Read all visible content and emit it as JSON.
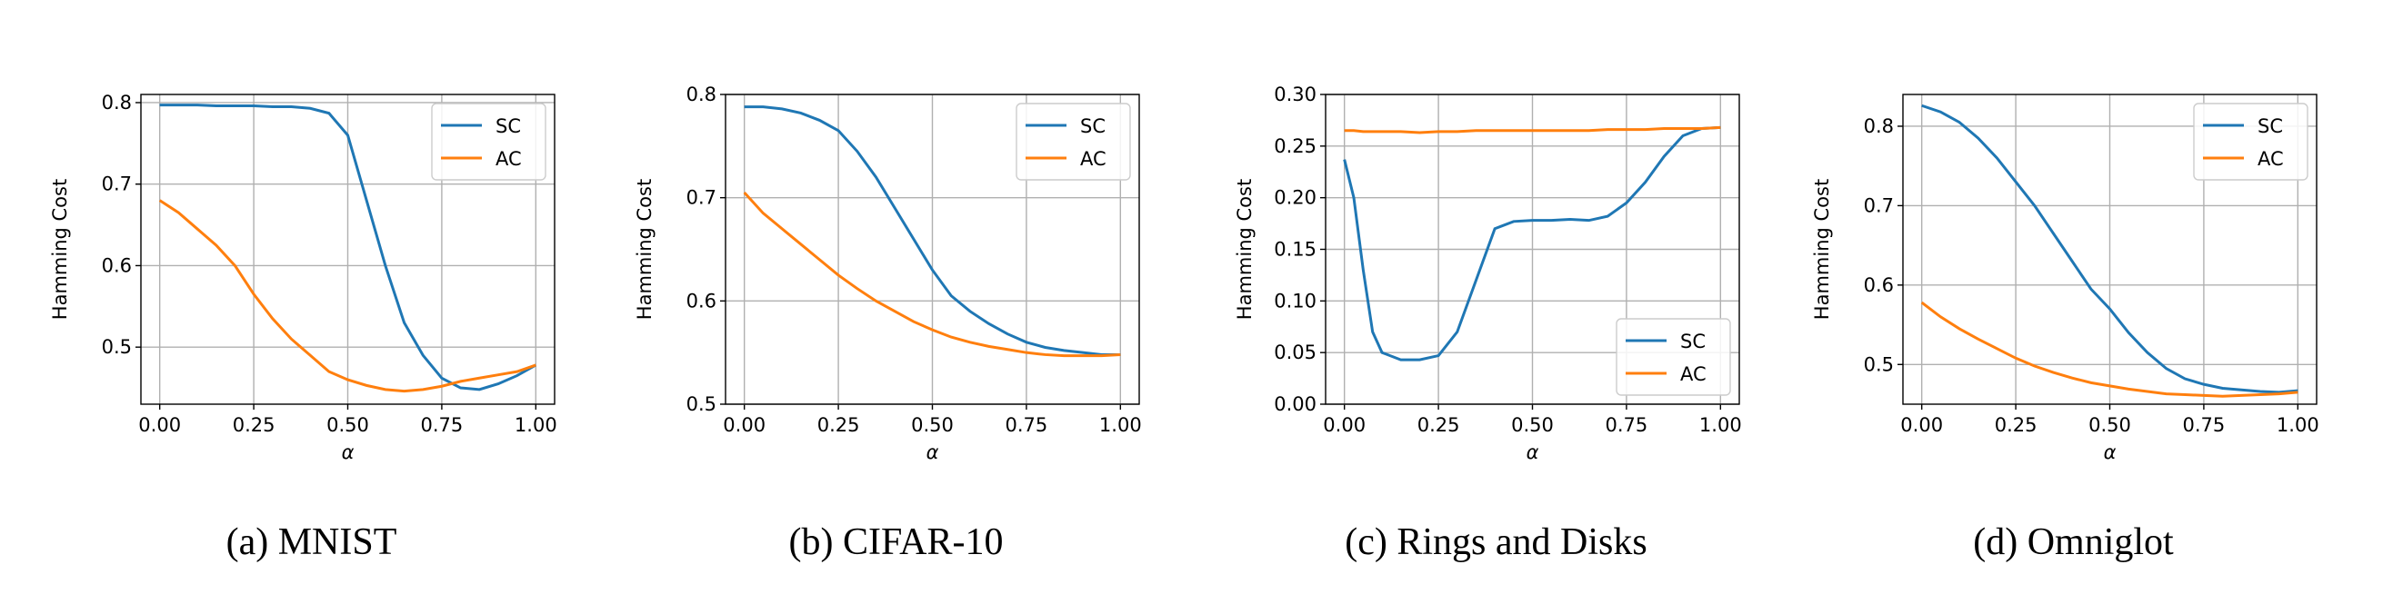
{
  "chart_data": [
    {
      "type": "line",
      "caption": "(a) MNIST",
      "xlabel": "α",
      "ylabel": "Hamming Cost",
      "x": [
        0,
        0.05,
        0.1,
        0.15,
        0.2,
        0.25,
        0.3,
        0.35,
        0.4,
        0.45,
        0.5,
        0.55,
        0.6,
        0.65,
        0.7,
        0.75,
        0.8,
        0.85,
        0.9,
        0.95,
        1.0
      ],
      "series": [
        {
          "name": "SC",
          "color": "#1f77b4",
          "values": [
            0.797,
            0.797,
            0.797,
            0.796,
            0.796,
            0.796,
            0.795,
            0.795,
            0.793,
            0.787,
            0.76,
            0.68,
            0.6,
            0.53,
            0.49,
            0.462,
            0.45,
            0.448,
            0.455,
            0.465,
            0.478
          ]
        },
        {
          "name": "AC",
          "color": "#ff7f0e",
          "values": [
            0.68,
            0.665,
            0.645,
            0.625,
            0.6,
            0.565,
            0.535,
            0.51,
            0.49,
            0.47,
            0.46,
            0.453,
            0.448,
            0.446,
            0.448,
            0.452,
            0.458,
            0.462,
            0.466,
            0.47,
            0.478
          ]
        }
      ],
      "xlim": [
        -0.05,
        1.05
      ],
      "ylim": [
        0.43,
        0.81
      ],
      "xticks": [
        {
          "value": 0,
          "label": "0.00"
        },
        {
          "value": 0.25,
          "label": "0.25"
        },
        {
          "value": 0.5,
          "label": "0.50"
        },
        {
          "value": 0.75,
          "label": "0.75"
        },
        {
          "value": 1,
          "label": "1.00"
        }
      ],
      "yticks": [
        0.5,
        0.6,
        0.7,
        0.8
      ],
      "grid": true,
      "legend": "upper-right"
    },
    {
      "type": "line",
      "caption": "(b) CIFAR-10",
      "xlabel": "α",
      "ylabel": "Hamming Cost",
      "x": [
        0,
        0.05,
        0.1,
        0.15,
        0.2,
        0.25,
        0.3,
        0.35,
        0.4,
        0.45,
        0.5,
        0.55,
        0.6,
        0.65,
        0.7,
        0.75,
        0.8,
        0.85,
        0.9,
        0.95,
        1.0
      ],
      "series": [
        {
          "name": "SC",
          "color": "#1f77b4",
          "values": [
            0.788,
            0.788,
            0.786,
            0.782,
            0.775,
            0.765,
            0.745,
            0.72,
            0.69,
            0.66,
            0.63,
            0.605,
            0.59,
            0.578,
            0.568,
            0.56,
            0.555,
            0.552,
            0.55,
            0.548,
            0.548
          ]
        },
        {
          "name": "AC",
          "color": "#ff7f0e",
          "values": [
            0.705,
            0.685,
            0.67,
            0.655,
            0.64,
            0.625,
            0.612,
            0.6,
            0.59,
            0.58,
            0.572,
            0.565,
            0.56,
            0.556,
            0.553,
            0.55,
            0.548,
            0.547,
            0.547,
            0.547,
            0.548
          ]
        }
      ],
      "xlim": [
        -0.05,
        1.05
      ],
      "ylim": [
        0.5,
        0.8
      ],
      "xticks": [
        {
          "value": 0,
          "label": "0.00"
        },
        {
          "value": 0.25,
          "label": "0.25"
        },
        {
          "value": 0.5,
          "label": "0.50"
        },
        {
          "value": 0.75,
          "label": "0.75"
        },
        {
          "value": 1,
          "label": "1.00"
        }
      ],
      "yticks": [
        0.5,
        0.6,
        0.7,
        0.8
      ],
      "grid": true,
      "legend": "upper-right"
    },
    {
      "type": "line",
      "caption": "(c) Rings and Disks",
      "xlabel": "α",
      "ylabel": "Hamming Cost",
      "x": [
        0,
        0.025,
        0.05,
        0.075,
        0.1,
        0.15,
        0.2,
        0.25,
        0.3,
        0.35,
        0.4,
        0.45,
        0.5,
        0.55,
        0.6,
        0.65,
        0.7,
        0.75,
        0.8,
        0.85,
        0.9,
        0.95,
        1.0
      ],
      "series": [
        {
          "name": "SC",
          "color": "#1f77b4",
          "values": [
            0.237,
            0.2,
            0.13,
            0.07,
            0.05,
            0.043,
            0.043,
            0.047,
            0.07,
            0.12,
            0.17,
            0.177,
            0.178,
            0.178,
            0.179,
            0.178,
            0.182,
            0.195,
            0.215,
            0.24,
            0.26,
            0.267,
            0.268
          ]
        },
        {
          "name": "AC",
          "color": "#ff7f0e",
          "values": [
            0.265,
            0.265,
            0.264,
            0.264,
            0.264,
            0.264,
            0.263,
            0.264,
            0.264,
            0.265,
            0.265,
            0.265,
            0.265,
            0.265,
            0.265,
            0.265,
            0.266,
            0.266,
            0.266,
            0.267,
            0.267,
            0.267,
            0.268
          ]
        }
      ],
      "xlim": [
        -0.05,
        1.05
      ],
      "ylim": [
        0,
        0.3
      ],
      "xticks": [
        {
          "value": 0,
          "label": "0.00"
        },
        {
          "value": 0.25,
          "label": "0.25"
        },
        {
          "value": 0.5,
          "label": "0.50"
        },
        {
          "value": 0.75,
          "label": "0.75"
        },
        {
          "value": 1,
          "label": "1.00"
        }
      ],
      "yticks": [
        {
          "value": 0,
          "label": "0.00"
        },
        {
          "value": 0.05,
          "label": "0.05"
        },
        {
          "value": 0.1,
          "label": "0.10"
        },
        {
          "value": 0.15,
          "label": "0.15"
        },
        {
          "value": 0.2,
          "label": "0.20"
        },
        {
          "value": 0.25,
          "label": "0.25"
        },
        {
          "value": 0.3,
          "label": "0.30"
        }
      ],
      "grid": true,
      "legend": "lower-right"
    },
    {
      "type": "line",
      "caption": "(d) Omniglot",
      "xlabel": "α",
      "ylabel": "Hamming Cost",
      "x": [
        0,
        0.05,
        0.1,
        0.15,
        0.2,
        0.25,
        0.3,
        0.35,
        0.4,
        0.45,
        0.5,
        0.55,
        0.6,
        0.65,
        0.7,
        0.75,
        0.8,
        0.85,
        0.9,
        0.95,
        1.0
      ],
      "series": [
        {
          "name": "SC",
          "color": "#1f77b4",
          "values": [
            0.826,
            0.818,
            0.805,
            0.785,
            0.76,
            0.73,
            0.7,
            0.665,
            0.63,
            0.595,
            0.57,
            0.54,
            0.515,
            0.495,
            0.482,
            0.475,
            0.47,
            0.468,
            0.466,
            0.465,
            0.467
          ]
        },
        {
          "name": "AC",
          "color": "#ff7f0e",
          "values": [
            0.578,
            0.56,
            0.545,
            0.532,
            0.52,
            0.508,
            0.498,
            0.49,
            0.483,
            0.477,
            0.473,
            0.469,
            0.466,
            0.463,
            0.462,
            0.461,
            0.46,
            0.461,
            0.462,
            0.463,
            0.465
          ]
        }
      ],
      "xlim": [
        -0.05,
        1.05
      ],
      "ylim": [
        0.45,
        0.84
      ],
      "xticks": [
        {
          "value": 0,
          "label": "0.00"
        },
        {
          "value": 0.25,
          "label": "0.25"
        },
        {
          "value": 0.5,
          "label": "0.50"
        },
        {
          "value": 0.75,
          "label": "0.75"
        },
        {
          "value": 1,
          "label": "1.00"
        }
      ],
      "yticks": [
        0.5,
        0.6,
        0.7,
        0.8
      ],
      "grid": true,
      "legend": "upper-right"
    }
  ]
}
